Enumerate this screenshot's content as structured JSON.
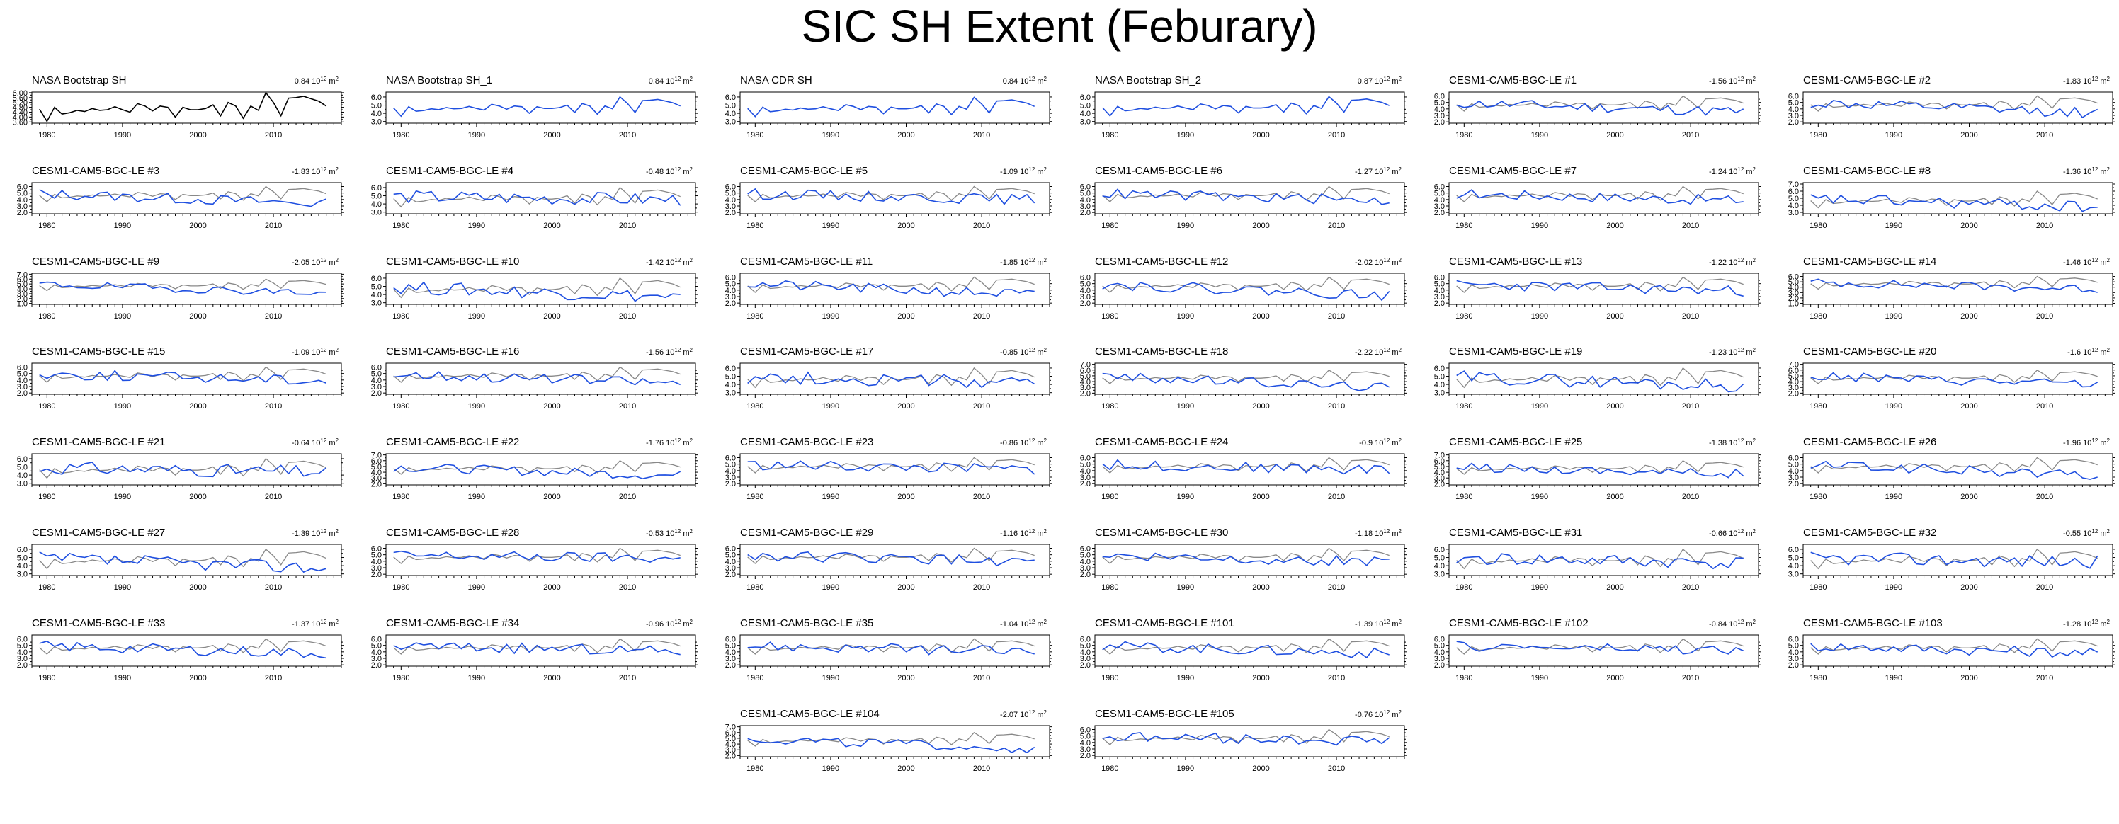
{
  "page": {
    "title": "SIC SH Extent (Feburary)"
  },
  "colors": {
    "obs": "#000000",
    "model": "#1f4fe0",
    "ref": "#888888",
    "frame": "#000000"
  },
  "chart_data": [
    {
      "type": "line",
      "title": "NASA Bootstrap SH",
      "trend": "0.84",
      "unit": "10",
      "exp": "12",
      "unit2": "m",
      "exp2": "2",
      "yticks": [
        "3.60",
        "4.00",
        "4.40",
        "4.80",
        "5.20",
        "5.60",
        "6.00"
      ],
      "ylim": [
        3.5,
        6.05
      ],
      "xlim": [
        1978,
        2019
      ],
      "xticks": [
        "1980",
        "1990",
        "2000",
        "2010"
      ],
      "series": [
        {
          "style": "obs",
          "y": [
            4.65,
            3.65,
            4.8,
            4.25,
            4.35,
            4.55,
            4.45,
            4.7,
            4.55,
            4.6,
            4.85,
            4.6,
            4.4,
            5.1,
            4.9,
            4.5,
            4.9,
            4.8,
            4.0,
            4.8,
            4.6,
            4.6,
            4.7,
            5.0,
            4.1,
            5.2,
            4.9,
            3.9,
            4.9,
            4.55,
            6.0,
            5.2,
            4.1,
            5.55,
            5.6,
            5.7,
            5.5,
            5.3,
            4.9
          ]
        }
      ]
    },
    {
      "type": "line",
      "title": "NASA Bootstrap SH_1",
      "trend": "0.84",
      "unit": "10",
      "exp": "12",
      "unit2": "m",
      "exp2": "2",
      "yticks": [
        "3.0",
        "4.0",
        "5.0",
        "6.0"
      ],
      "ylim": [
        2.8,
        6.6
      ],
      "xlim": [
        1978,
        2019
      ],
      "xticks": [
        "1980",
        "1990",
        "2000",
        "2010"
      ],
      "series": [
        {
          "style": "model",
          "y": [
            4.65,
            3.65,
            4.8,
            4.25,
            4.35,
            4.55,
            4.45,
            4.7,
            4.55,
            4.6,
            4.85,
            4.6,
            4.4,
            5.1,
            4.9,
            4.5,
            4.9,
            4.8,
            4.0,
            4.8,
            4.6,
            4.6,
            4.7,
            5.0,
            4.1,
            5.2,
            4.9,
            3.9,
            4.9,
            4.55,
            6.0,
            5.2,
            4.1,
            5.55,
            5.6,
            5.7,
            5.5,
            5.3,
            4.9
          ]
        }
      ]
    },
    {
      "type": "line",
      "title": "NASA CDR SH",
      "trend": "0.84",
      "unit": "10",
      "exp": "12",
      "unit2": "m",
      "exp2": "2",
      "yticks": [
        "3.0",
        "4.0",
        "5.0",
        "6.0"
      ],
      "ylim": [
        2.8,
        6.6
      ],
      "xlim": [
        1978,
        2019
      ],
      "xticks": [
        "1980",
        "1990",
        "2000",
        "2010"
      ],
      "series": [
        {
          "style": "model",
          "y": [
            4.6,
            3.6,
            4.75,
            4.2,
            4.3,
            4.5,
            4.4,
            4.65,
            4.5,
            4.55,
            4.8,
            4.55,
            4.35,
            5.05,
            4.85,
            4.45,
            4.85,
            4.75,
            3.95,
            4.75,
            4.55,
            4.55,
            4.65,
            4.95,
            4.05,
            5.15,
            4.85,
            3.85,
            4.85,
            4.5,
            5.95,
            5.15,
            4.05,
            5.5,
            5.55,
            5.65,
            5.45,
            5.25,
            4.85
          ]
        }
      ]
    },
    {
      "type": "line",
      "title": "NASA Bootstrap SH_2",
      "trend": "0.87",
      "unit": "10",
      "exp": "12",
      "unit2": "m",
      "exp2": "2",
      "yticks": [
        "3.0",
        "4.0",
        "5.0",
        "6.0"
      ],
      "ylim": [
        2.8,
        6.6
      ],
      "xlim": [
        1978,
        2019
      ],
      "xticks": [
        "1980",
        "1990",
        "2000",
        "2010"
      ],
      "series": [
        {
          "style": "model",
          "y": [
            4.7,
            3.7,
            4.85,
            4.3,
            4.4,
            4.6,
            4.5,
            4.75,
            4.6,
            4.65,
            4.9,
            4.65,
            4.45,
            5.15,
            4.95,
            4.55,
            4.95,
            4.85,
            4.05,
            4.85,
            4.65,
            4.65,
            4.75,
            5.05,
            4.15,
            5.25,
            4.95,
            3.95,
            4.95,
            4.6,
            6.05,
            5.25,
            4.15,
            5.6,
            5.65,
            5.75,
            5.55,
            5.35,
            4.95
          ]
        }
      ]
    },
    {
      "type": "line",
      "title": "CESM1-CAM5-BGC-LE #1",
      "trend": "-1.56",
      "yticks": [
        "2.0",
        "3.0",
        "4.0",
        "5.0",
        "6.0"
      ],
      "ylim": [
        1.8,
        6.6
      ]
    },
    {
      "type": "line",
      "title": "CESM1-CAM5-BGC-LE #2",
      "trend": "-1.83",
      "yticks": [
        "2.0",
        "3.0",
        "4.0",
        "5.0",
        "6.0"
      ],
      "ylim": [
        1.8,
        6.6
      ]
    },
    {
      "type": "line",
      "title": "CESM1-CAM5-BGC-LE #3",
      "trend": "-1.83",
      "yticks": [
        "2.0",
        "3.0",
        "4.0",
        "5.0",
        "6.0"
      ],
      "ylim": [
        1.8,
        6.6
      ]
    },
    {
      "type": "line",
      "title": "CESM1-CAM5-BGC-LE #4",
      "trend": "-0.48",
      "yticks": [
        "3.0",
        "4.0",
        "5.0",
        "6.0"
      ],
      "ylim": [
        2.8,
        6.6
      ]
    },
    {
      "type": "line",
      "title": "CESM1-CAM5-BGC-LE #5",
      "trend": "-1.09",
      "yticks": [
        "2.0",
        "3.0",
        "4.0",
        "5.0",
        "6.0"
      ],
      "ylim": [
        1.8,
        6.6
      ]
    },
    {
      "type": "line",
      "title": "CESM1-CAM5-BGC-LE #6",
      "trend": "-1.27",
      "yticks": [
        "2.0",
        "3.0",
        "4.0",
        "5.0",
        "6.0"
      ],
      "ylim": [
        1.8,
        6.6
      ]
    },
    {
      "type": "line",
      "title": "CESM1-CAM5-BGC-LE #7",
      "trend": "-1.24",
      "yticks": [
        "2.0",
        "3.0",
        "4.0",
        "5.0",
        "6.0"
      ],
      "ylim": [
        1.8,
        6.6
      ]
    },
    {
      "type": "line",
      "title": "CESM1-CAM5-BGC-LE #8",
      "trend": "-1.36",
      "yticks": [
        "3.0",
        "4.0",
        "5.0",
        "6.0",
        "7.0"
      ],
      "ylim": [
        2.8,
        7.2
      ]
    },
    {
      "type": "line",
      "title": "CESM1-CAM5-BGC-LE #9",
      "trend": "-2.05",
      "yticks": [
        "1.0",
        "2.0",
        "3.0",
        "4.0",
        "5.0",
        "6.0",
        "7.0"
      ],
      "ylim": [
        0.8,
        7.2
      ]
    },
    {
      "type": "line",
      "title": "CESM1-CAM5-BGC-LE #10",
      "trend": "-1.42",
      "yticks": [
        "3.0",
        "4.0",
        "5.0",
        "6.0"
      ],
      "ylim": [
        2.8,
        6.6
      ]
    },
    {
      "type": "line",
      "title": "CESM1-CAM5-BGC-LE #11",
      "trend": "-1.85",
      "yticks": [
        "2.0",
        "3.0",
        "4.0",
        "5.0",
        "6.0"
      ],
      "ylim": [
        1.8,
        6.6
      ]
    },
    {
      "type": "line",
      "title": "CESM1-CAM5-BGC-LE #12",
      "trend": "-2.02",
      "yticks": [
        "2.0",
        "3.0",
        "4.0",
        "5.0",
        "6.0"
      ],
      "ylim": [
        1.8,
        6.6
      ]
    },
    {
      "type": "line",
      "title": "CESM1-CAM5-BGC-LE #13",
      "trend": "-1.22",
      "yticks": [
        "2.0",
        "3.0",
        "4.0",
        "5.0",
        "6.0"
      ],
      "ylim": [
        1.8,
        6.6
      ]
    },
    {
      "type": "line",
      "title": "CESM1-CAM5-BGC-LE #14",
      "trend": "-1.46",
      "yticks": [
        "1.0",
        "2.0",
        "3.0",
        "4.0",
        "5.0",
        "6.0"
      ],
      "ylim": [
        0.8,
        6.6
      ]
    },
    {
      "type": "line",
      "title": "CESM1-CAM5-BGC-LE #15",
      "trend": "-1.09",
      "yticks": [
        "2.0",
        "3.0",
        "4.0",
        "5.0",
        "6.0"
      ],
      "ylim": [
        1.8,
        6.6
      ]
    },
    {
      "type": "line",
      "title": "CESM1-CAM5-BGC-LE #16",
      "trend": "-1.56",
      "yticks": [
        "2.0",
        "3.0",
        "4.0",
        "5.0",
        "6.0"
      ],
      "ylim": [
        1.8,
        6.6
      ]
    },
    {
      "type": "line",
      "title": "CESM1-CAM5-BGC-LE #17",
      "trend": "-0.85",
      "yticks": [
        "3.0",
        "4.0",
        "5.0",
        "6.0"
      ],
      "ylim": [
        2.8,
        6.6
      ]
    },
    {
      "type": "line",
      "title": "CESM1-CAM5-BGC-LE #18",
      "trend": "-2.22",
      "yticks": [
        "2.0",
        "3.0",
        "4.0",
        "5.0",
        "6.0",
        "7.0"
      ],
      "ylim": [
        1.8,
        7.2
      ]
    },
    {
      "type": "line",
      "title": "CESM1-CAM5-BGC-LE #19",
      "trend": "-1.23",
      "yticks": [
        "3.0",
        "4.0",
        "5.0",
        "6.0"
      ],
      "ylim": [
        2.8,
        6.6
      ]
    },
    {
      "type": "line",
      "title": "CESM1-CAM5-BGC-LE #20",
      "trend": "-1.6",
      "yticks": [
        "2.0",
        "3.0",
        "4.0",
        "5.0",
        "6.0",
        "7.0"
      ],
      "ylim": [
        1.8,
        7.2
      ]
    },
    {
      "type": "line",
      "title": "CESM1-CAM5-BGC-LE #21",
      "trend": "-0.64",
      "yticks": [
        "3.0",
        "4.0",
        "5.0",
        "6.0"
      ],
      "ylim": [
        2.8,
        6.6
      ]
    },
    {
      "type": "line",
      "title": "CESM1-CAM5-BGC-LE #22",
      "trend": "-1.76",
      "yticks": [
        "2.0",
        "3.0",
        "4.0",
        "5.0",
        "6.0",
        "7.0"
      ],
      "ylim": [
        1.8,
        7.2
      ]
    },
    {
      "type": "line",
      "title": "CESM1-CAM5-BGC-LE #23",
      "trend": "-0.86",
      "yticks": [
        "2.0",
        "3.0",
        "4.0",
        "5.0",
        "6.0"
      ],
      "ylim": [
        1.8,
        6.6
      ]
    },
    {
      "type": "line",
      "title": "CESM1-CAM5-BGC-LE #24",
      "trend": "-0.9",
      "yticks": [
        "2.0",
        "3.0",
        "4.0",
        "5.0",
        "6.0"
      ],
      "ylim": [
        1.8,
        6.6
      ]
    },
    {
      "type": "line",
      "title": "CESM1-CAM5-BGC-LE #25",
      "trend": "-1.38",
      "yticks": [
        "2.0",
        "3.0",
        "4.0",
        "5.0",
        "6.0",
        "7.0"
      ],
      "ylim": [
        1.8,
        7.2
      ]
    },
    {
      "type": "line",
      "title": "CESM1-CAM5-BGC-LE #26",
      "trend": "-1.96",
      "yticks": [
        "2.0",
        "3.0",
        "4.0",
        "5.0",
        "6.0"
      ],
      "ylim": [
        1.8,
        6.6
      ]
    },
    {
      "type": "line",
      "title": "CESM1-CAM5-BGC-LE #27",
      "trend": "-1.39",
      "yticks": [
        "3.0",
        "4.0",
        "5.0",
        "6.0"
      ],
      "ylim": [
        2.8,
        6.6
      ]
    },
    {
      "type": "line",
      "title": "CESM1-CAM5-BGC-LE #28",
      "trend": "-0.53",
      "yticks": [
        "2.0",
        "3.0",
        "4.0",
        "5.0",
        "6.0"
      ],
      "ylim": [
        1.8,
        6.6
      ]
    },
    {
      "type": "line",
      "title": "CESM1-CAM5-BGC-LE #29",
      "trend": "-1.16",
      "yticks": [
        "2.0",
        "3.0",
        "4.0",
        "5.0",
        "6.0"
      ],
      "ylim": [
        1.8,
        6.6
      ]
    },
    {
      "type": "line",
      "title": "CESM1-CAM5-BGC-LE #30",
      "trend": "-1.18",
      "yticks": [
        "2.0",
        "3.0",
        "4.0",
        "5.0",
        "6.0"
      ],
      "ylim": [
        1.8,
        6.6
      ]
    },
    {
      "type": "line",
      "title": "CESM1-CAM5-BGC-LE #31",
      "trend": "-0.66",
      "yticks": [
        "3.0",
        "4.0",
        "5.0",
        "6.0"
      ],
      "ylim": [
        2.8,
        6.6
      ]
    },
    {
      "type": "line",
      "title": "CESM1-CAM5-BGC-LE #32",
      "trend": "-0.55",
      "yticks": [
        "3.0",
        "4.0",
        "5.0",
        "6.0"
      ],
      "ylim": [
        2.8,
        6.6
      ]
    },
    {
      "type": "line",
      "title": "CESM1-CAM5-BGC-LE #33",
      "trend": "-1.37",
      "yticks": [
        "2.0",
        "3.0",
        "4.0",
        "5.0",
        "6.0"
      ],
      "ylim": [
        1.8,
        6.6
      ]
    },
    {
      "type": "line",
      "title": "CESM1-CAM5-BGC-LE #34",
      "trend": "-0.96",
      "yticks": [
        "2.0",
        "3.0",
        "4.0",
        "5.0",
        "6.0"
      ],
      "ylim": [
        1.8,
        6.6
      ]
    },
    {
      "type": "line",
      "title": "CESM1-CAM5-BGC-LE #35",
      "trend": "-1.04",
      "yticks": [
        "2.0",
        "3.0",
        "4.0",
        "5.0",
        "6.0"
      ],
      "ylim": [
        1.8,
        6.6
      ]
    },
    {
      "type": "line",
      "title": "CESM1-CAM5-BGC-LE #101",
      "trend": "-1.39",
      "yticks": [
        "2.0",
        "3.0",
        "4.0",
        "5.0",
        "6.0"
      ],
      "ylim": [
        1.8,
        6.6
      ]
    },
    {
      "type": "line",
      "title": "CESM1-CAM5-BGC-LE #102",
      "trend": "-0.84",
      "yticks": [
        "2.0",
        "3.0",
        "4.0",
        "5.0",
        "6.0"
      ],
      "ylim": [
        1.8,
        6.6
      ]
    },
    {
      "type": "line",
      "title": "CESM1-CAM5-BGC-LE #103",
      "trend": "-1.28",
      "yticks": [
        "2.0",
        "3.0",
        "4.0",
        "5.0",
        "6.0"
      ],
      "ylim": [
        1.8,
        6.6
      ]
    },
    {
      "type": "line",
      "title": "CESM1-CAM5-BGC-LE #104",
      "trend": "-2.07",
      "yticks": [
        "2.0",
        "3.0",
        "4.0",
        "5.0",
        "6.0",
        "7.0"
      ],
      "ylim": [
        1.8,
        7.2
      ]
    },
    {
      "type": "line",
      "title": "CESM1-CAM5-BGC-LE #105",
      "trend": "-0.76",
      "yticks": [
        "2.0",
        "3.0",
        "4.0",
        "5.0",
        "6.0"
      ],
      "ylim": [
        1.8,
        6.6
      ]
    }
  ]
}
